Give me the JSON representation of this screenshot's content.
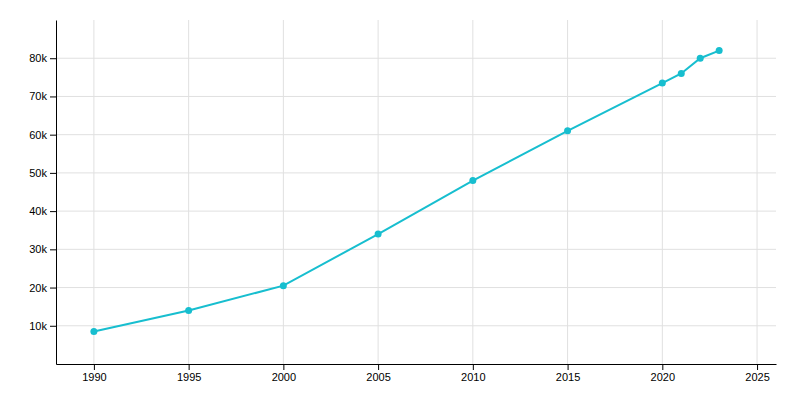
{
  "chart_data": {
    "type": "line",
    "x": [
      1990,
      1995,
      2000,
      2005,
      2010,
      2015,
      2020,
      2021,
      2022,
      2023
    ],
    "values": [
      8500,
      14000,
      20500,
      34000,
      48000,
      61000,
      73500,
      76000,
      80000,
      82000
    ],
    "color": "#17becf",
    "marker": "circle",
    "xlim": [
      1988,
      2026
    ],
    "ylim": [
      0,
      90000
    ],
    "xticks": [
      1990,
      1995,
      2000,
      2005,
      2010,
      2015,
      2020,
      2025
    ],
    "yticks": [
      {
        "value": 10000,
        "label": "10k"
      },
      {
        "value": 20000,
        "label": "20k"
      },
      {
        "value": 30000,
        "label": "30k"
      },
      {
        "value": 40000,
        "label": "40k"
      },
      {
        "value": 50000,
        "label": "50k"
      },
      {
        "value": 60000,
        "label": "60k"
      },
      {
        "value": 70000,
        "label": "70k"
      },
      {
        "value": 80000,
        "label": "80k"
      }
    ],
    "grid": true
  }
}
